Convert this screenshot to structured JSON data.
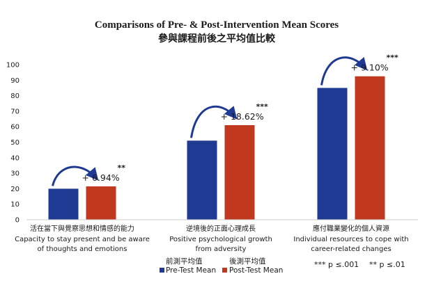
{
  "chart_data": {
    "type": "bar",
    "title": "Comparisons of Pre- & Post-Intervention Mean Scores",
    "subtitle": "參與課程前後之平均值比較",
    "ylim": [
      0,
      100
    ],
    "yticks": [
      "0",
      "10",
      "20",
      "30",
      "40",
      "50",
      "60",
      "70",
      "80",
      "90",
      "100"
    ],
    "categories": [
      {
        "zh": "活在當下與覺察思想和情感的能力",
        "en1": "Capacity to stay present and be aware",
        "en2": "of thoughts and emotions"
      },
      {
        "zh": "逆境後的正面心理成長",
        "en1": "Positive psychological growth",
        "en2": "from adversity"
      },
      {
        "zh": "應付職業變化的個人資源",
        "en1": "Individual resources to cope with",
        "en2": "career-related changes"
      }
    ],
    "series": [
      {
        "name": "Pre-Test Mean",
        "name_zh": "前測平均值",
        "color": "#1f3a93",
        "values": [
          20,
          51,
          85
        ]
      },
      {
        "name": "Post-Test Mean",
        "name_zh": "後測平均值",
        "color": "#c0391e",
        "values": [
          21.5,
          61,
          92.5
        ]
      }
    ],
    "annotations": [
      {
        "change": "+ 6.94%",
        "significance": "**"
      },
      {
        "change": "+ 18.62%",
        "significance": "***"
      },
      {
        "change": "+ 9.10%",
        "significance": "***"
      }
    ],
    "arrow_color": "#1f3a93",
    "grid": false,
    "legend_position": "bottom",
    "footnote": {
      "p001": "*** p ≤.001",
      "p01": "** p ≤.01"
    }
  }
}
